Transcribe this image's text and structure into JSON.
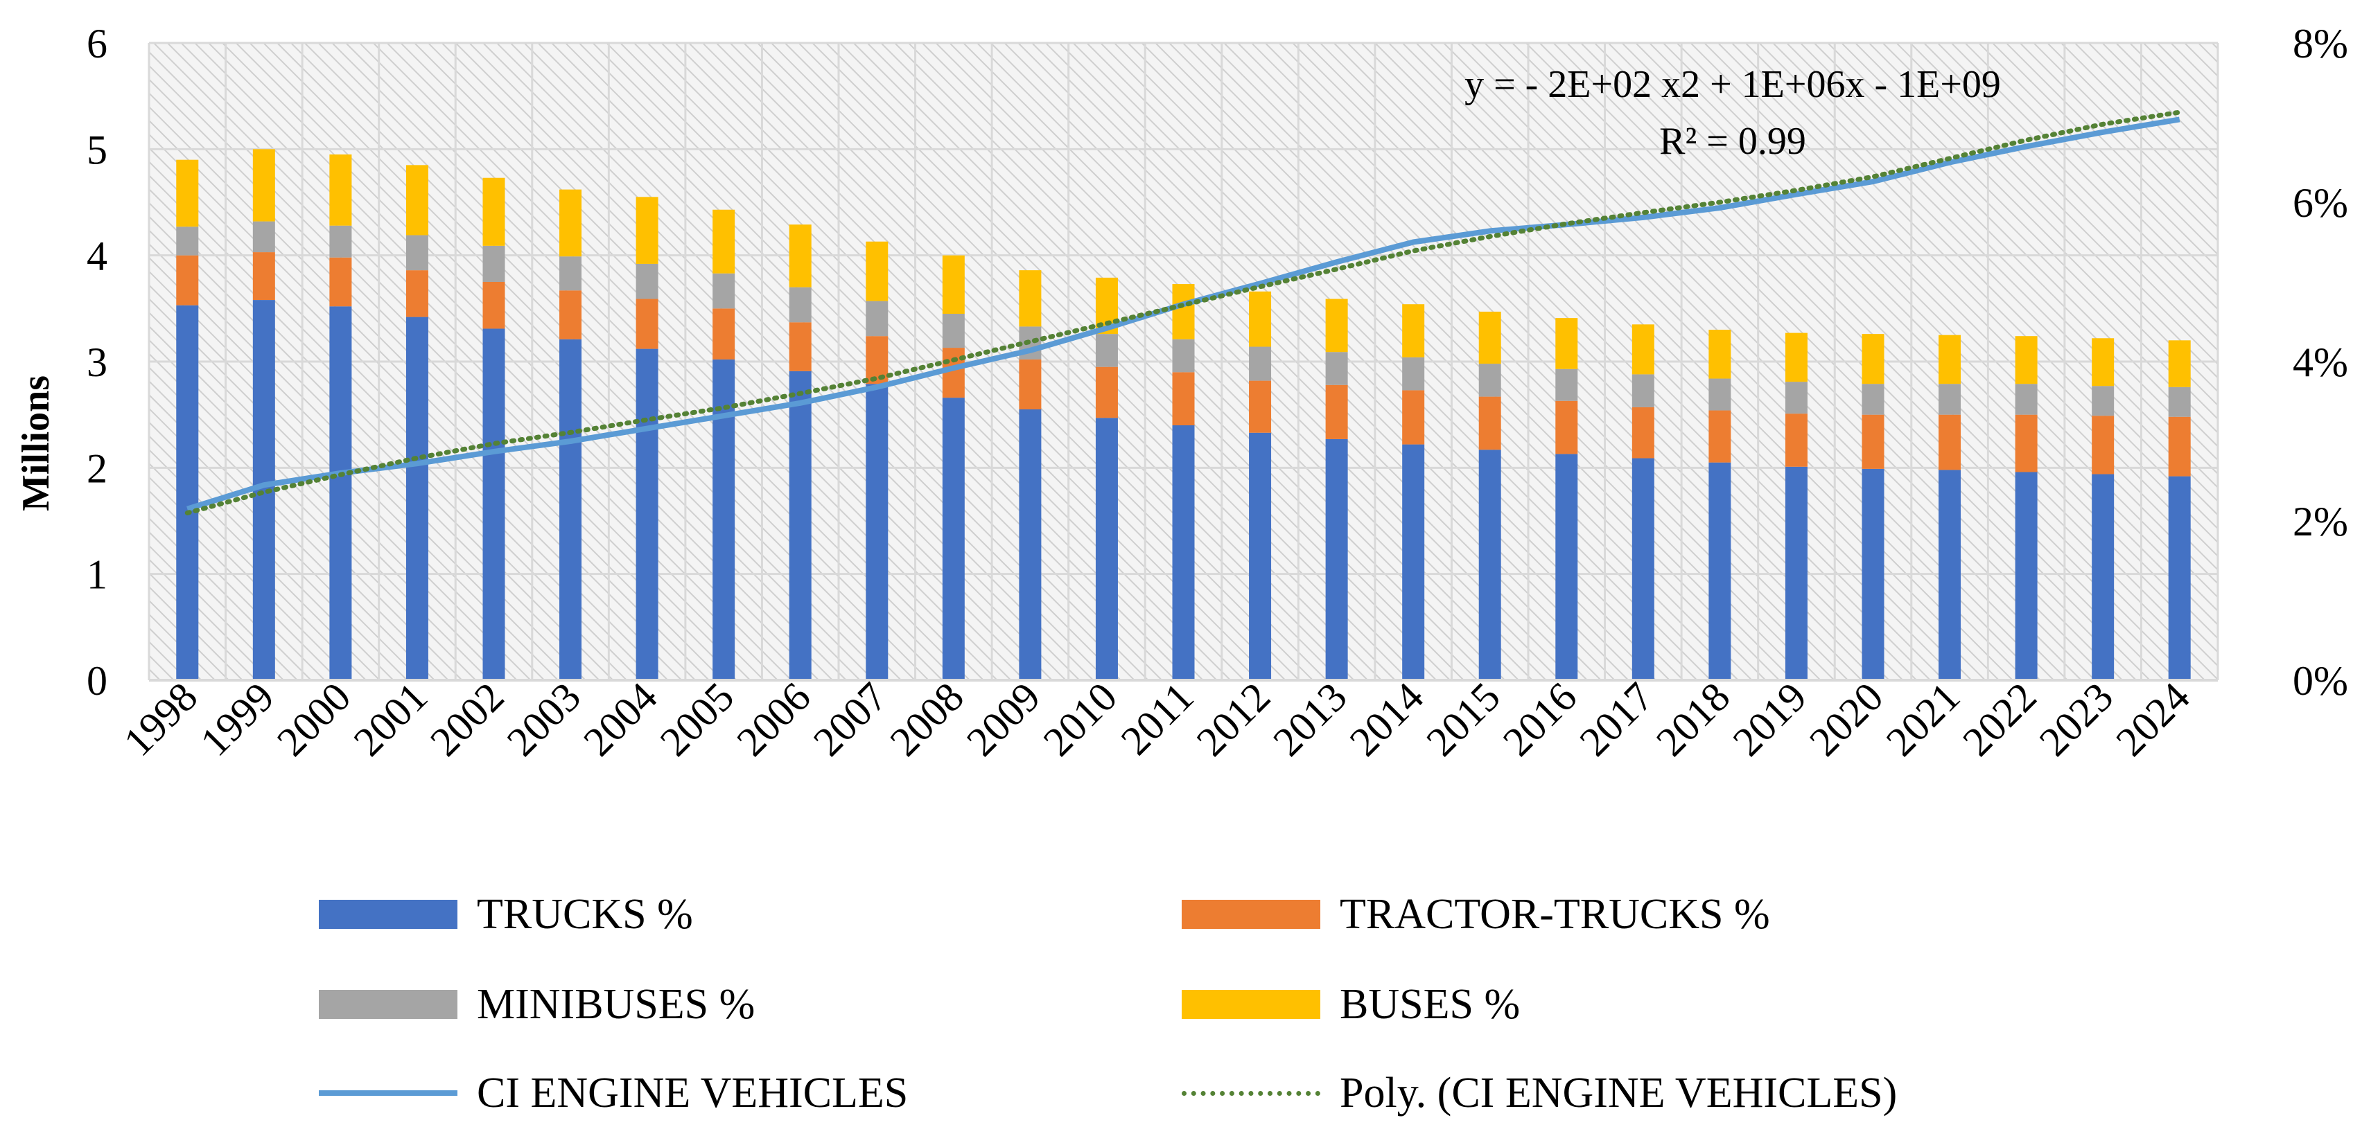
{
  "chart_data": {
    "type": "bar",
    "stacked": true,
    "categories": [
      "1998",
      "1999",
      "2000",
      "2001",
      "2002",
      "2003",
      "2004",
      "2005",
      "2006",
      "2007",
      "2008",
      "2009",
      "2010",
      "2011",
      "2012",
      "2013",
      "2014",
      "2015",
      "2016",
      "2017",
      "2018",
      "2019",
      "2020",
      "2021",
      "2022",
      "2023",
      "2024"
    ],
    "series": [
      {
        "name": "TRUCKS %",
        "color": "#4472C4",
        "axis": "left",
        "values": [
          3.53,
          3.58,
          3.52,
          3.42,
          3.31,
          3.21,
          3.12,
          3.02,
          2.91,
          2.79,
          2.66,
          2.55,
          2.47,
          2.4,
          2.33,
          2.27,
          2.22,
          2.17,
          2.13,
          2.09,
          2.05,
          2.01,
          1.99,
          1.98,
          1.96,
          1.94,
          1.92
        ]
      },
      {
        "name": "TRACTOR-TRUCKS %",
        "color": "#ED7D31",
        "axis": "left",
        "values": [
          0.47,
          0.45,
          0.46,
          0.44,
          0.44,
          0.46,
          0.47,
          0.48,
          0.46,
          0.45,
          0.47,
          0.47,
          0.48,
          0.5,
          0.49,
          0.51,
          0.51,
          0.5,
          0.5,
          0.48,
          0.49,
          0.5,
          0.51,
          0.52,
          0.54,
          0.55,
          0.56
        ]
      },
      {
        "name": "MINIBUSES %",
        "color": "#A5A5A5",
        "axis": "left",
        "values": [
          0.27,
          0.29,
          0.3,
          0.33,
          0.34,
          0.32,
          0.33,
          0.33,
          0.33,
          0.33,
          0.32,
          0.31,
          0.31,
          0.31,
          0.32,
          0.31,
          0.31,
          0.31,
          0.3,
          0.31,
          0.3,
          0.3,
          0.29,
          0.29,
          0.29,
          0.28,
          0.28
        ]
      },
      {
        "name": "BUSES %",
        "color": "#FFC000",
        "axis": "left",
        "values": [
          0.63,
          0.68,
          0.67,
          0.66,
          0.64,
          0.63,
          0.63,
          0.6,
          0.59,
          0.56,
          0.55,
          0.53,
          0.53,
          0.52,
          0.52,
          0.5,
          0.5,
          0.49,
          0.48,
          0.47,
          0.46,
          0.46,
          0.47,
          0.46,
          0.45,
          0.45,
          0.44
        ]
      },
      {
        "name": "CI ENGINE VEHICLES",
        "type": "line",
        "color": "#5B9BD5",
        "axis": "right",
        "values": [
          2.15,
          2.45,
          2.6,
          2.72,
          2.87,
          3.0,
          3.16,
          3.32,
          3.48,
          3.68,
          3.92,
          4.14,
          4.42,
          4.72,
          4.98,
          5.25,
          5.5,
          5.64,
          5.72,
          5.81,
          5.93,
          6.1,
          6.26,
          6.5,
          6.7,
          6.88,
          7.04
        ]
      },
      {
        "name": "Poly. (CI ENGINE VEHICLES)",
        "type": "trendline",
        "color": "#548235",
        "axis": "right",
        "values": [
          2.1,
          2.36,
          2.58,
          2.79,
          2.97,
          3.11,
          3.27,
          3.42,
          3.6,
          3.79,
          4.02,
          4.25,
          4.48,
          4.71,
          4.94,
          5.16,
          5.39,
          5.57,
          5.73,
          5.87,
          6.0,
          6.15,
          6.32,
          6.55,
          6.78,
          6.98,
          7.13
        ]
      }
    ],
    "ylabel": "Millions",
    "ylim": [
      0,
      6
    ],
    "yticks": [
      "0",
      "1",
      "2",
      "3",
      "4",
      "5",
      "6"
    ],
    "y2lim": [
      0,
      8
    ],
    "y2ticks": [
      "0%",
      "2%",
      "4%",
      "6%",
      "8%"
    ],
    "annotation": {
      "equation": "y = - 2E+02 x2 + 1E+06x - 1E+09",
      "r_squared": "R² = 0.99"
    },
    "grid": true,
    "legend_position": "bottom"
  }
}
